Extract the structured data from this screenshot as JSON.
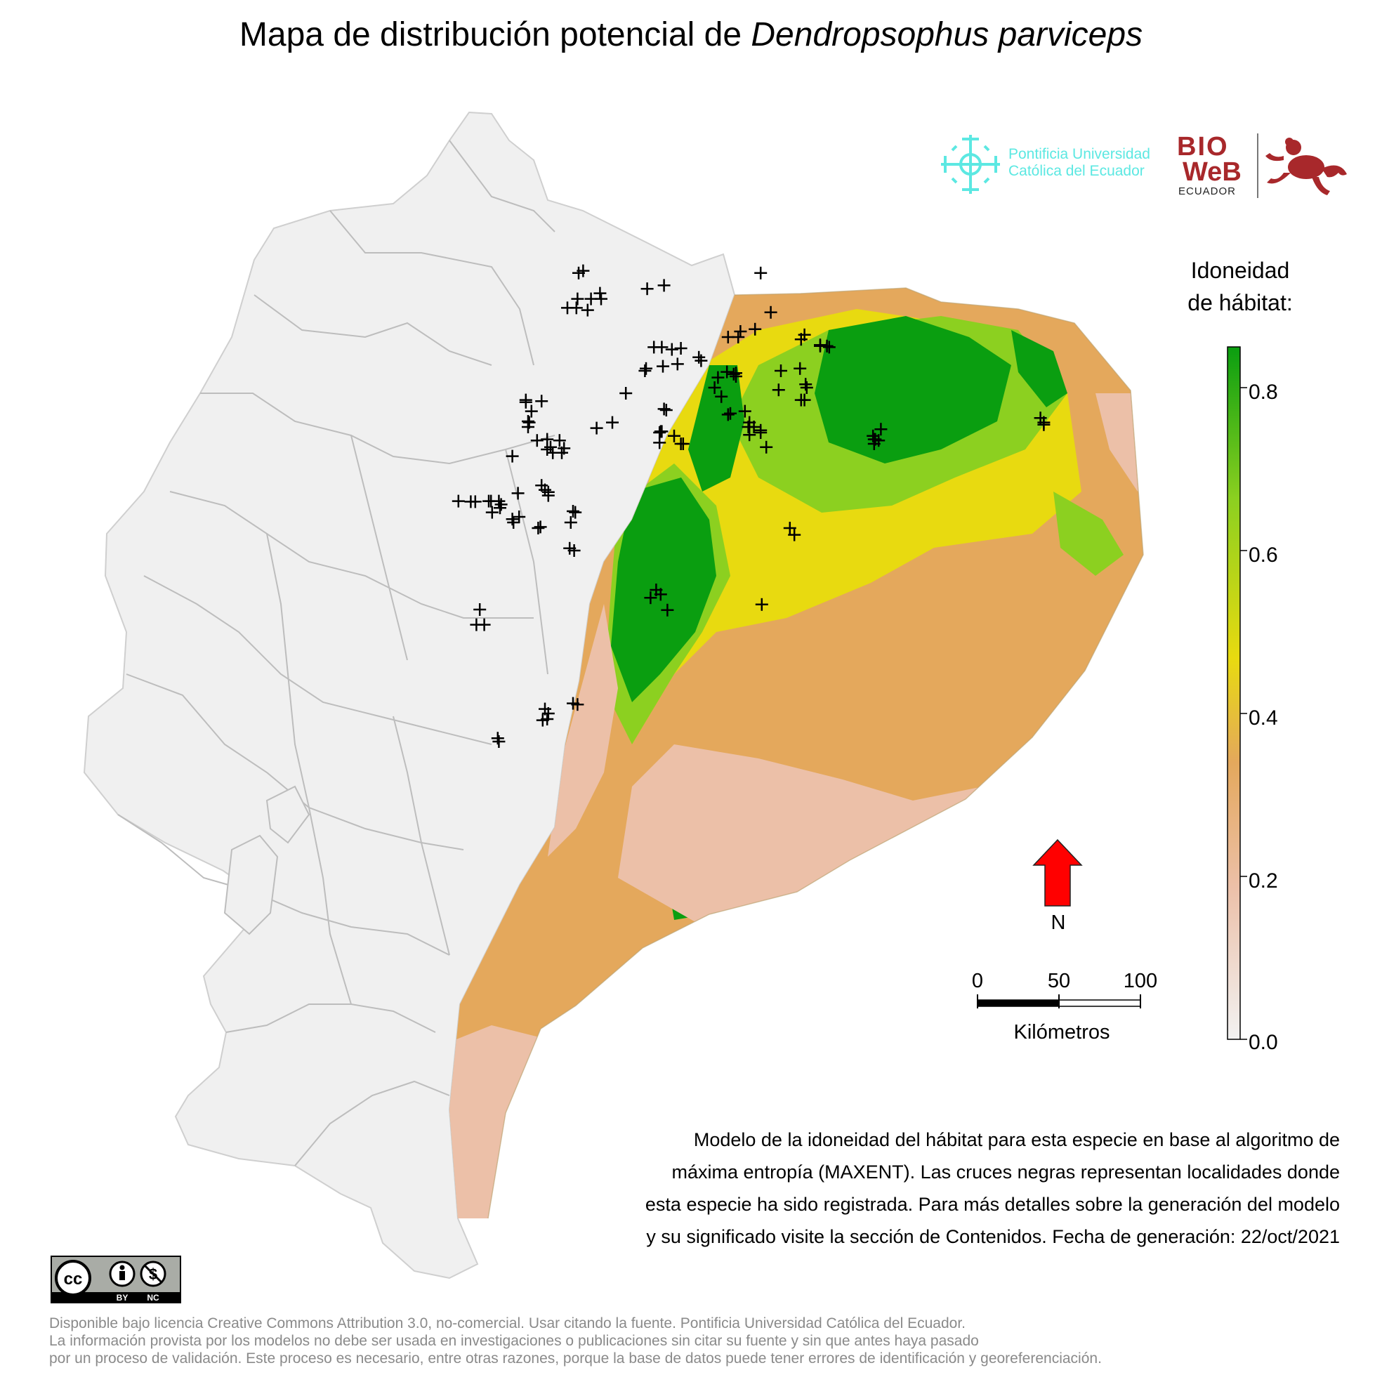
{
  "title": {
    "prefix": "Mapa de distribución potencial de ",
    "species": "Dendropsophus parviceps"
  },
  "logos": {
    "puce": [
      "Pontificia Universidad",
      "Católica del Ecuador"
    ],
    "bioweb": {
      "line1": "BIO",
      "line2": "WeB",
      "line3": "ECUADOR"
    }
  },
  "legend": {
    "title": [
      "Idoneidad",
      "de hábitat:"
    ],
    "ticks": [
      "0.8",
      "0.6",
      "0.4",
      "0.2",
      "0.0"
    ],
    "tick_values": [
      0.8,
      0.6,
      0.4,
      0.2,
      0.0
    ],
    "range": [
      0.0,
      0.85
    ],
    "colors": [
      "#f2f2f2",
      "#ecc0a8",
      "#e4a85c",
      "#e8da10",
      "#8cd020",
      "#0a9e10"
    ]
  },
  "north_arrow": {
    "label": "N",
    "color": "#ff0000"
  },
  "scale_bar": {
    "ticks": [
      "0",
      "50",
      "100"
    ],
    "unit": "Kilómetros"
  },
  "caption": [
    "Modelo de la idoneidad del hábitat para esta especie en base al algoritmo de",
    "máxima entropía (MAXENT). Las cruces negras representan localidades donde",
    "esta especie ha sido registrada. Para más detalles sobre la generación del modelo",
    "y su significado visite la sección de Contenidos. Fecha de generación: 22/oct/2021"
  ],
  "license_badge": {
    "by": "BY",
    "nc": "NC"
  },
  "footer": [
    "Disponible bajo licencia Creative Commons Attribution 3.0, no-comercial. Usar citando la fuente. Pontificia Universidad Católica del Ecuador.",
    "La información provista por los modelos no debe ser usada en investigaciones o publicaciones sin citar su fuente y sin que antes haya pasado",
    "por un proceso de validación. Este proceso es necesario, entre otras razones, porque la base de datos puede tener errores de identificación y georeferenciación."
  ],
  "colors": {
    "land": "#f0f0f0",
    "border": "#bdbdbd",
    "low": "#ecc0a8",
    "mid": "#e4a85c",
    "yellow": "#e8da10",
    "green_light": "#8cd020",
    "green_dark": "#0a9e10",
    "cross": "#000000"
  }
}
